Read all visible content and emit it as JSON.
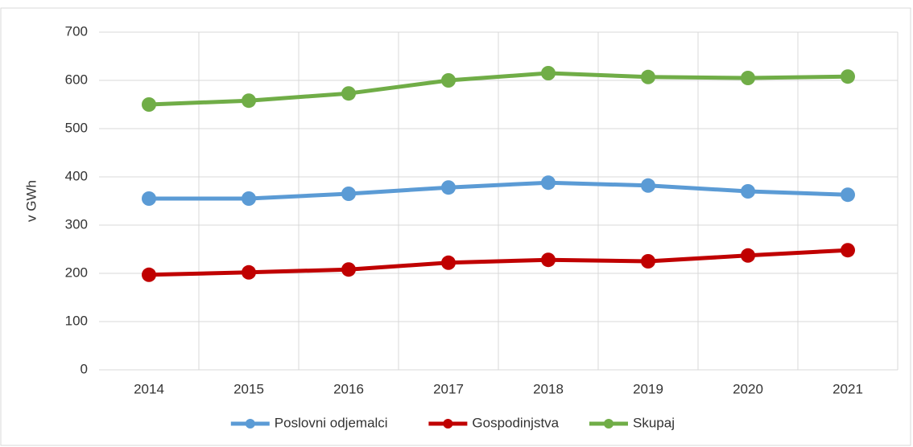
{
  "chart_data": {
    "type": "line",
    "y_label": "v GWh",
    "categories": [
      "2014",
      "2015",
      "2016",
      "2017",
      "2018",
      "2019",
      "2020",
      "2021"
    ],
    "series": [
      {
        "name": "Poslovni odjemalci",
        "color": "#5b9bd5",
        "values": [
          355,
          355,
          365,
          378,
          388,
          382,
          370,
          363
        ]
      },
      {
        "name": "Gospodinjstva",
        "color": "#c00000",
        "values": [
          197,
          202,
          208,
          222,
          228,
          225,
          237,
          248
        ]
      },
      {
        "name": "Skupaj",
        "color": "#70ad47",
        "values": [
          550,
          558,
          573,
          600,
          615,
          607,
          605,
          608
        ]
      }
    ],
    "ylim": [
      0,
      700
    ],
    "yticks": [
      0,
      100,
      200,
      300,
      400,
      500,
      600,
      700
    ],
    "grid": true,
    "legend": "bottom"
  }
}
